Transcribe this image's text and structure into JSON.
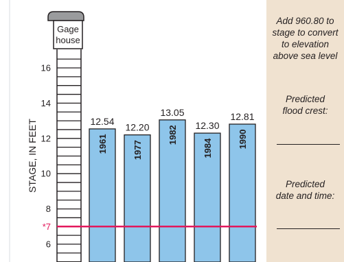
{
  "chart_data": {
    "type": "bar",
    "categories": [
      "1961",
      "1977",
      "1982",
      "1984",
      "1990"
    ],
    "values": [
      12.54,
      12.2,
      13.05,
      12.3,
      12.81
    ],
    "value_labels": [
      "12.54",
      "12.20",
      "13.05",
      "12.30",
      "12.81"
    ],
    "ylabel": "STAGE, IN FEET",
    "ylim": [
      5.0,
      17.8
    ],
    "yticks": [
      "6",
      "8",
      "10",
      "12",
      "14",
      "16"
    ],
    "flood_stage": {
      "value": 7,
      "label": "*7",
      "color": "#e3175b"
    },
    "bar_color": "#8ec5ea",
    "grid": false,
    "legend": "none"
  },
  "gage": {
    "label_line1": "Gage",
    "label_line2": "house"
  },
  "sidebar": {
    "conversion_note": "Add 960.80 to\nstage to convert\nto elevation\nabove sea level",
    "predicted_crest_label": "Predicted\nflood crest:",
    "predicted_date_label": "Predicted\ndate and time:"
  }
}
